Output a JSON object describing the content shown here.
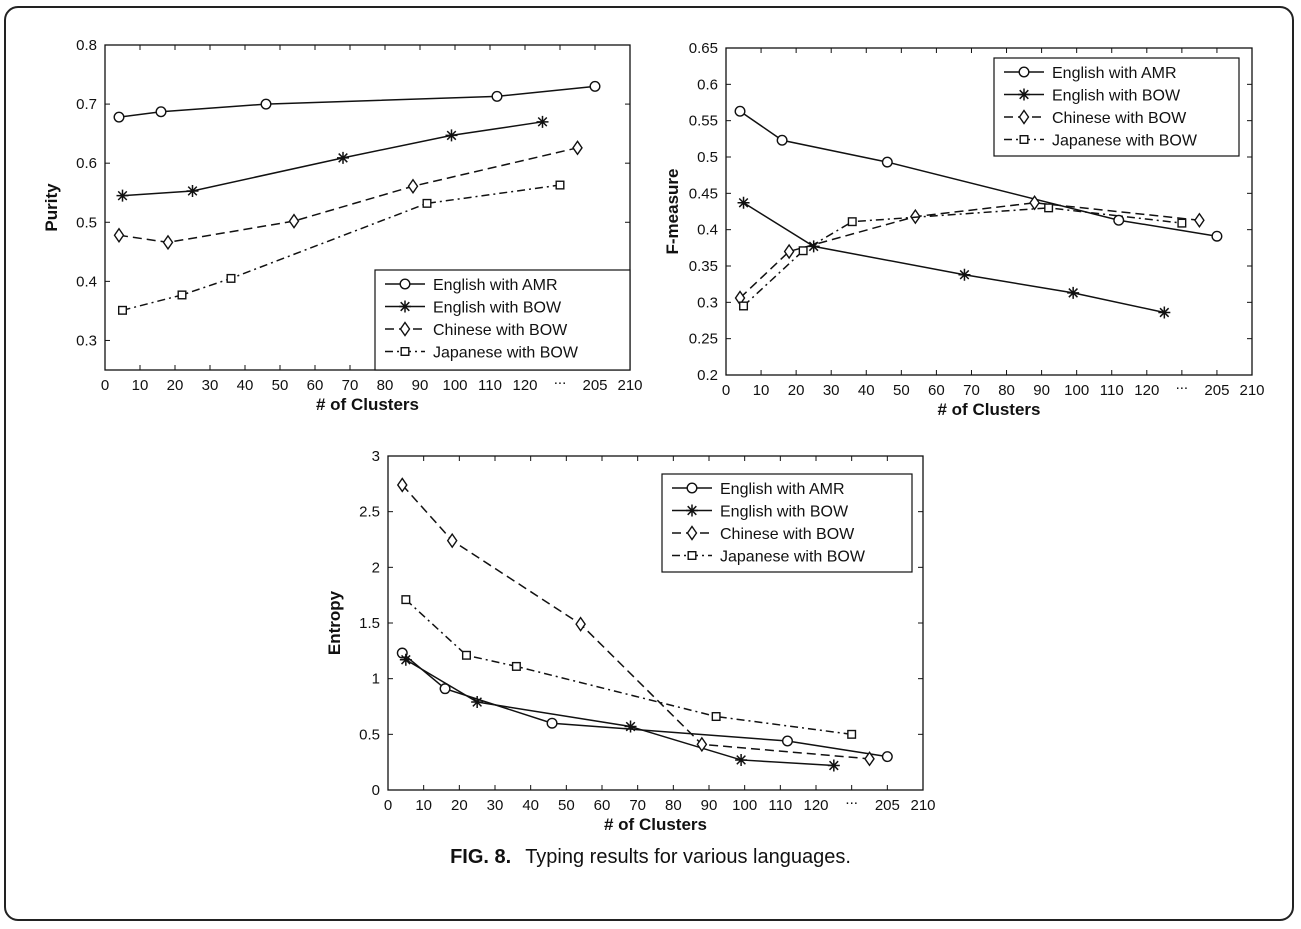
{
  "figure": {
    "label": "FIG. 8.",
    "caption": "Typing results for various languages."
  },
  "legend_entries": [
    "English with AMR",
    "English with BOW",
    "Chinese with BOW",
    "Japanese with BOW"
  ],
  "chart_data": [
    {
      "type": "line",
      "ylabel": "Purity",
      "xlabel": "# of Clusters",
      "ylim": [
        0.25,
        0.8
      ],
      "yticks": [
        0.3,
        0.4,
        0.5,
        0.6,
        0.7,
        0.8
      ],
      "xticks": [
        "0",
        "10",
        "20",
        "30",
        "40",
        "50",
        "60",
        "70",
        "80",
        "90",
        "100",
        "110",
        "120",
        "...",
        "205",
        "210"
      ],
      "grid": false,
      "legend_position": "bottom-right",
      "series": [
        {
          "name": "English with AMR",
          "marker": "circle",
          "dash": "solid",
          "x": [
            4,
            16,
            46,
            112,
            205
          ],
          "y": [
            0.678,
            0.687,
            0.7,
            0.713,
            0.73
          ]
        },
        {
          "name": "English with BOW",
          "marker": "star",
          "dash": "solid",
          "x": [
            5,
            25,
            68,
            99,
            124
          ],
          "y": [
            0.545,
            0.553,
            0.609,
            0.647,
            0.67
          ]
        },
        {
          "name": "Chinese with BOW",
          "marker": "diamond",
          "dash": "dashed",
          "x": [
            4,
            18,
            54,
            88,
            203
          ],
          "y": [
            0.478,
            0.466,
            0.502,
            0.561,
            0.626
          ]
        },
        {
          "name": "Japanese with BOW",
          "marker": "square",
          "dash": "dashdot",
          "x": [
            5,
            22,
            36,
            92,
            201
          ],
          "y": [
            0.351,
            0.377,
            0.405,
            0.532,
            0.563
          ]
        }
      ]
    },
    {
      "type": "line",
      "ylabel": "F-measure",
      "xlabel": "# of Clusters",
      "ylim": [
        0.2,
        0.65
      ],
      "yticks": [
        0.2,
        0.25,
        0.3,
        0.35,
        0.4,
        0.45,
        0.5,
        0.55,
        0.6,
        0.65
      ],
      "xticks": [
        "0",
        "10",
        "20",
        "30",
        "40",
        "50",
        "60",
        "70",
        "80",
        "90",
        "100",
        "110",
        "120",
        "...",
        "205",
        "210"
      ],
      "grid": false,
      "legend_position": "top-right",
      "series": [
        {
          "name": "English with AMR",
          "marker": "circle",
          "dash": "solid",
          "x": [
            4,
            16,
            46,
            112,
            205
          ],
          "y": [
            0.563,
            0.523,
            0.493,
            0.413,
            0.391
          ]
        },
        {
          "name": "English with BOW",
          "marker": "star",
          "dash": "solid",
          "x": [
            5,
            25,
            68,
            99,
            124
          ],
          "y": [
            0.437,
            0.377,
            0.338,
            0.313,
            0.286
          ]
        },
        {
          "name": "Chinese with BOW",
          "marker": "diamond",
          "dash": "dashed",
          "x": [
            4,
            18,
            54,
            88,
            203
          ],
          "y": [
            0.306,
            0.37,
            0.418,
            0.437,
            0.413
          ]
        },
        {
          "name": "Japanese with BOW",
          "marker": "square",
          "dash": "dashdot",
          "x": [
            5,
            22,
            36,
            92,
            201
          ],
          "y": [
            0.295,
            0.371,
            0.411,
            0.43,
            0.409
          ]
        }
      ]
    },
    {
      "type": "line",
      "ylabel": "Entropy",
      "xlabel": "# of Clusters",
      "ylim": [
        0,
        3
      ],
      "yticks": [
        0,
        0.5,
        1,
        1.5,
        2,
        2.5,
        3
      ],
      "xticks": [
        "0",
        "10",
        "20",
        "30",
        "40",
        "50",
        "60",
        "70",
        "80",
        "90",
        "100",
        "110",
        "120",
        "...",
        "205",
        "210"
      ],
      "grid": false,
      "legend_position": "top-right",
      "series": [
        {
          "name": "English with AMR",
          "marker": "circle",
          "dash": "solid",
          "x": [
            4,
            16,
            46,
            112,
            205
          ],
          "y": [
            1.23,
            0.91,
            0.6,
            0.44,
            0.3
          ]
        },
        {
          "name": "English with BOW",
          "marker": "star",
          "dash": "solid",
          "x": [
            5,
            25,
            68,
            99,
            124
          ],
          "y": [
            1.17,
            0.79,
            0.57,
            0.27,
            0.22
          ]
        },
        {
          "name": "Chinese with BOW",
          "marker": "diamond",
          "dash": "dashed",
          "x": [
            4,
            18,
            54,
            88,
            203
          ],
          "y": [
            2.74,
            2.24,
            1.49,
            0.41,
            0.28
          ]
        },
        {
          "name": "Japanese with BOW",
          "marker": "square",
          "dash": "dashdot",
          "x": [
            5,
            22,
            36,
            92,
            201
          ],
          "y": [
            1.71,
            1.21,
            1.11,
            0.66,
            0.5
          ]
        }
      ]
    }
  ]
}
